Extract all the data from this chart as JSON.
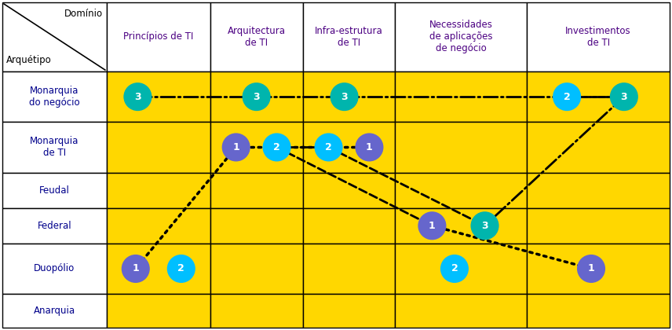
{
  "col_labels": [
    "Princípios de TI",
    "Arquitectura\nde TI",
    "Infra-estrutura\nde TI",
    "Necessidades\nde aplicações\nde negócio",
    "Investimentos\nde TI"
  ],
  "row_labels": [
    "Monarquia\ndo negócio",
    "Monarquia\nde TI",
    "Feudal",
    "Federal",
    "Duopólio",
    "Anarquia"
  ],
  "header_top_right": "Domínio",
  "header_bottom_left": "Arquétipo",
  "yellow": "#FFD700",
  "white": "#FFFFFF",
  "border_color": "#000000",
  "row_label_color": "#00008B",
  "col_label_color": "#4B0082",
  "color_teal": "#00B5AD",
  "color_cyan": "#00BFFF",
  "color_purple": "#6666CC",
  "figsize": [
    8.56,
    4.2
  ],
  "dpi": 100
}
